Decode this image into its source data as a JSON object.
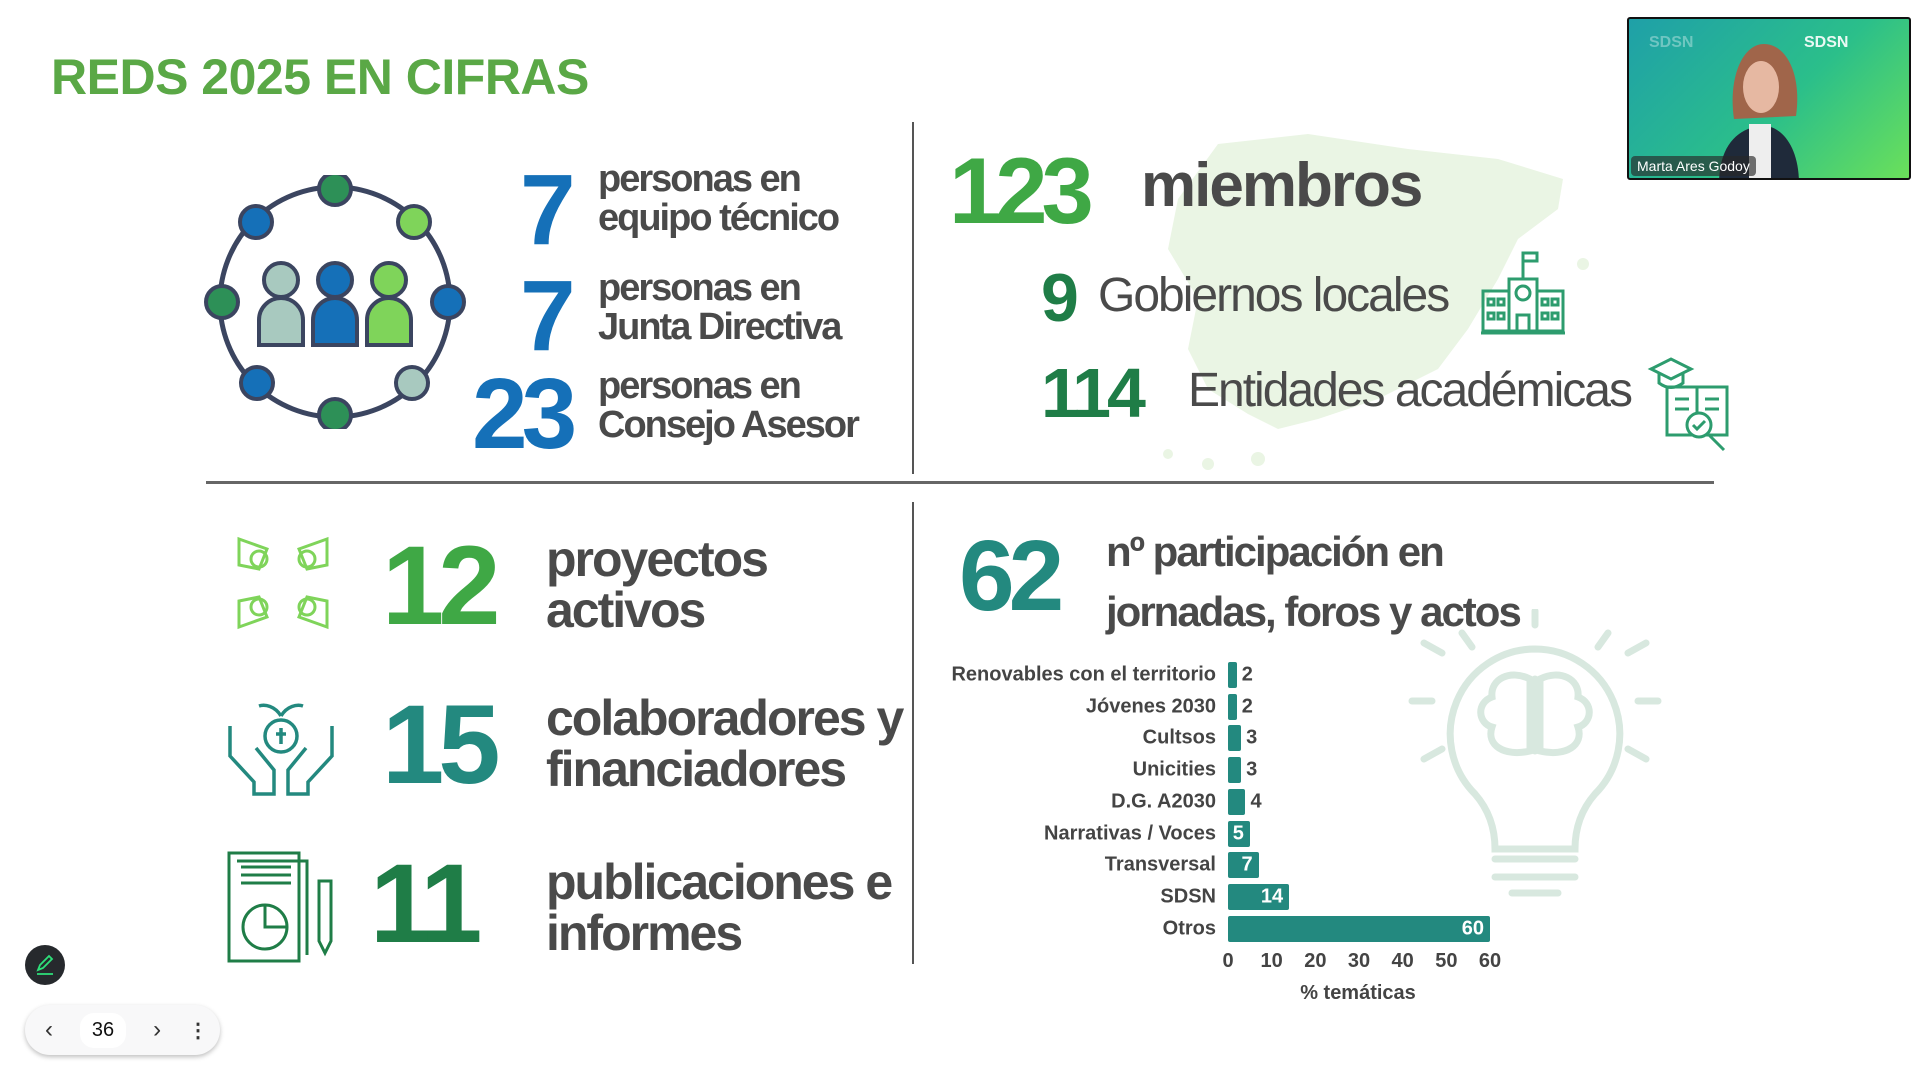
{
  "slide": {
    "title": "REDS 2025 EN CIFRAS",
    "team": [
      {
        "value": "7",
        "line1": "personas en",
        "line2": "equipo técnico"
      },
      {
        "value": "7",
        "line1": "personas en",
        "line2": "Junta Directiva"
      },
      {
        "value": "23",
        "line1": "personas en",
        "line2": "Consejo Asesor"
      }
    ],
    "members": {
      "value": "123",
      "label": "miembros"
    },
    "local_gov": {
      "value": "9",
      "label": "Gobiernos locales"
    },
    "academic": {
      "value": "114",
      "label": "Entidades académicas"
    },
    "projects": {
      "value": "12",
      "line1": "proyectos",
      "line2": "activos"
    },
    "collaborators": {
      "value": "15",
      "line1": "colaboradores y",
      "line2": "financiadores"
    },
    "publications": {
      "value": "11",
      "line1": "publicaciones e",
      "line2": "informes"
    },
    "participation": {
      "value": "62",
      "line1": "nº participación en",
      "line2": "jornadas, foros y actos"
    },
    "colors": {
      "blue": "#1570b8",
      "green": "#3fa845",
      "teal": "#23897f",
      "darkgreen": "#1f7d47",
      "title": "#5aa846"
    }
  },
  "chart_data": {
    "type": "bar",
    "orientation": "horizontal",
    "categories": [
      "Renovables con el territorio",
      "Jóvenes 2030",
      "Cultsos",
      "Unicities",
      "D.G. A2030",
      "Narrativas / Voces",
      "Transversal",
      "SDSN",
      "Otros"
    ],
    "values": [
      2,
      2,
      3,
      3,
      4,
      5,
      7,
      14,
      60
    ],
    "value_labels": [
      "2",
      "2",
      "3",
      "3",
      "4",
      "5",
      "7",
      "14",
      "60"
    ],
    "xlabel": "% temáticas",
    "xlim": [
      0,
      60
    ],
    "xticks": [
      "0",
      "10",
      "20",
      "30",
      "40",
      "50",
      "60"
    ],
    "color": "#23897f"
  },
  "video": {
    "participant_name": "Marta Ares Godoy",
    "bg_brand": "SDSN"
  },
  "controls": {
    "page_number": "36"
  }
}
